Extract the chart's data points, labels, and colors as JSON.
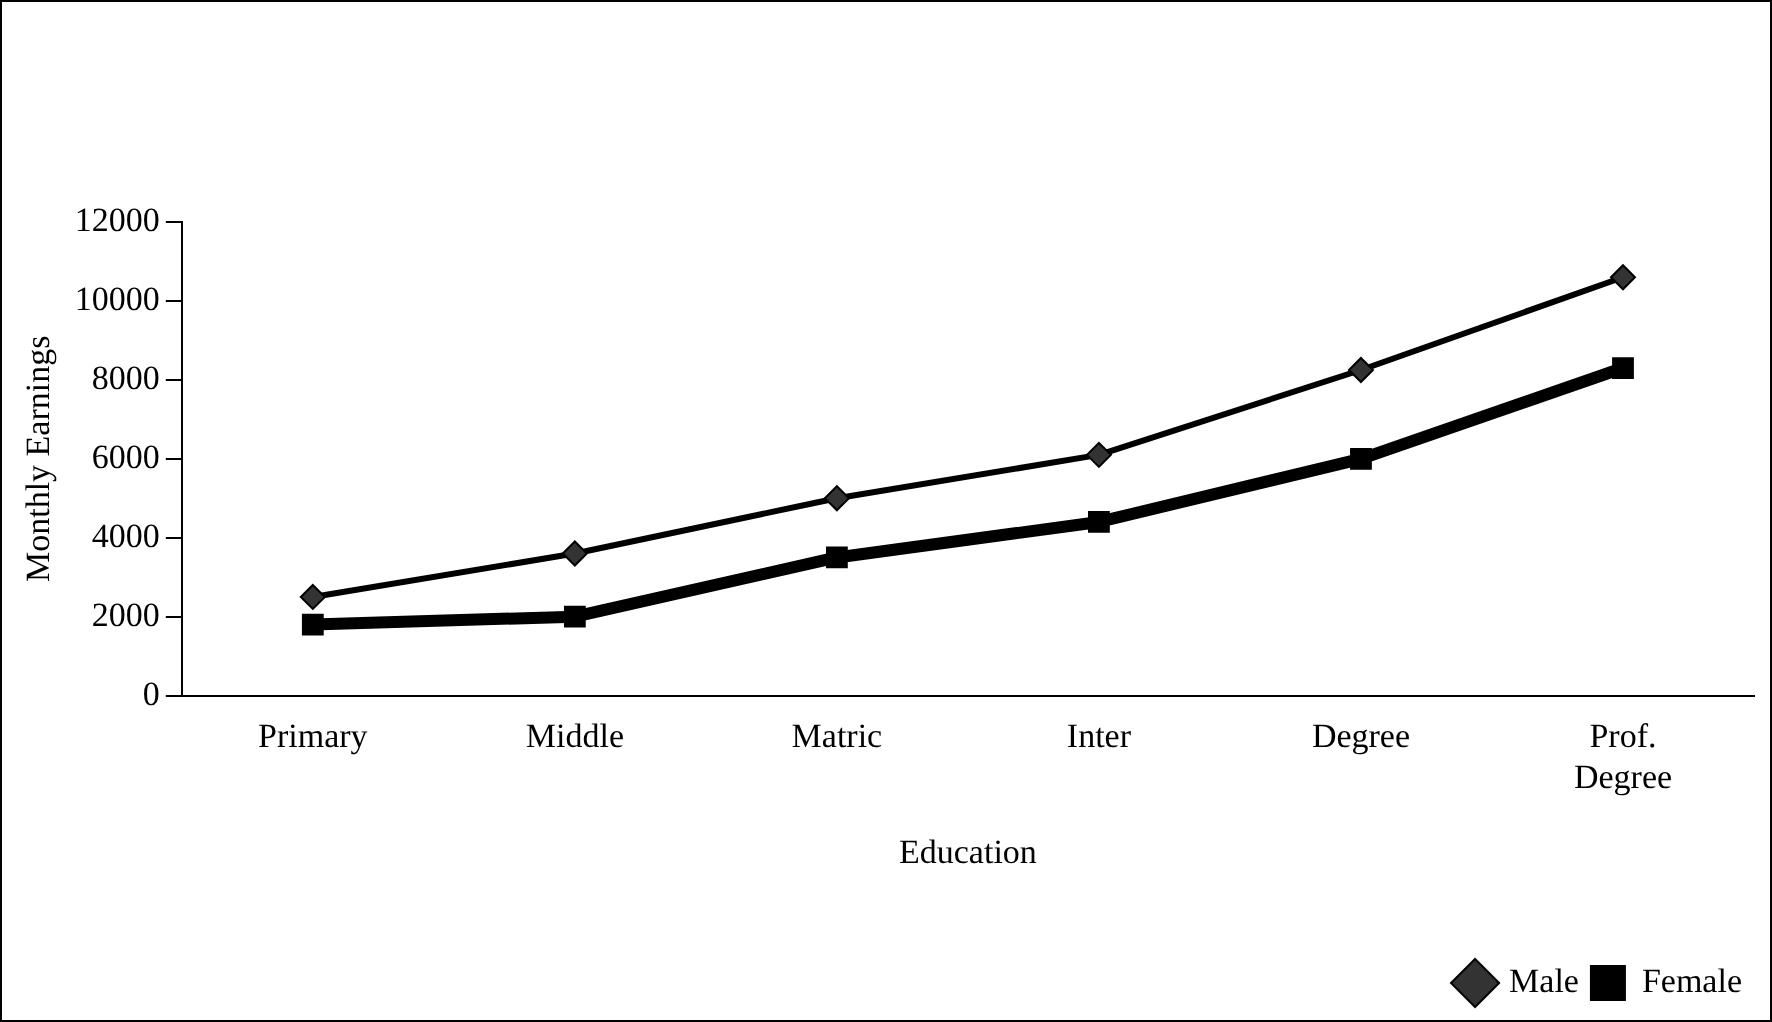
{
  "chart_data": {
    "type": "line",
    "xlabel": "Education",
    "ylabel": "Monthly Earnings",
    "categories": [
      "Primary",
      "Middle",
      "Matric",
      "Inter",
      "Degree",
      "Prof. Degree"
    ],
    "series": [
      {
        "name": "Male",
        "color": "#000000",
        "marker": "diamond",
        "values": [
          2500,
          3600,
          5000,
          6100,
          8250,
          10600
        ]
      },
      {
        "name": "Female",
        "color": "#000000",
        "marker": "square",
        "values": [
          1800,
          2000,
          3500,
          4400,
          6000,
          8300
        ]
      }
    ],
    "ylim": [
      0,
      12000
    ],
    "yticks": [
      0,
      2000,
      4000,
      6000,
      8000,
      10000,
      12000
    ],
    "grid": false,
    "legend": "bottom right"
  }
}
